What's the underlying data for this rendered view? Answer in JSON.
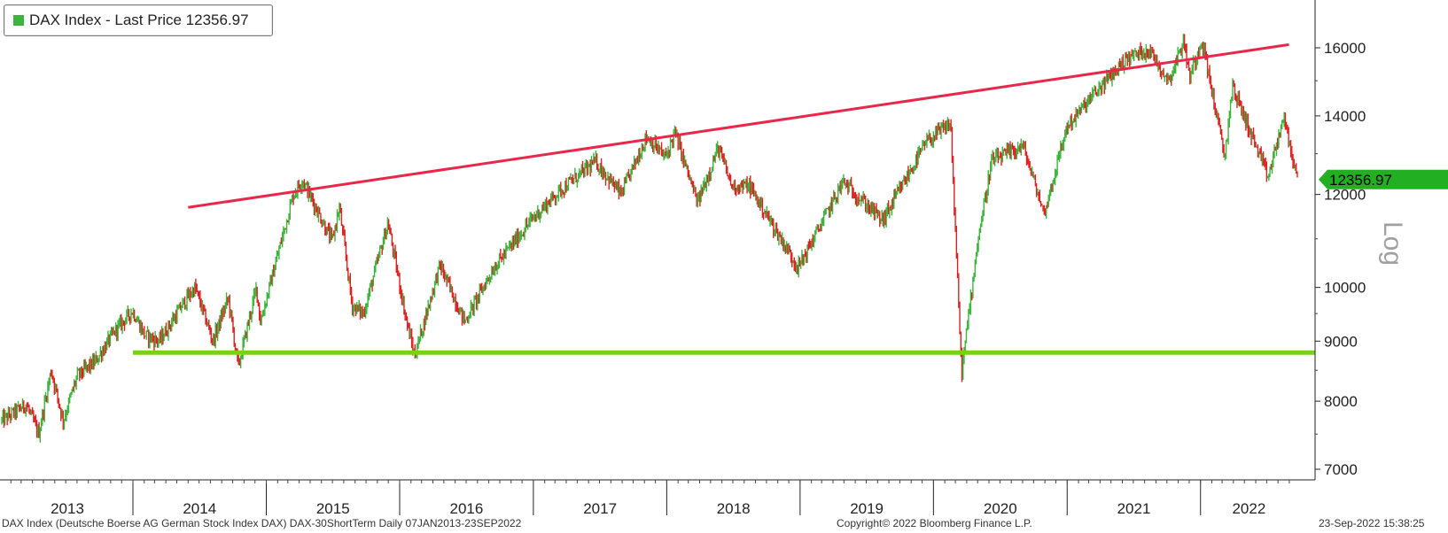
{
  "legend": {
    "label": "DAX Index - Last Price 12356.97",
    "color": "#3cb43c"
  },
  "footer": {
    "left": "DAX Index (Deutsche Boerse AG German Stock Index DAX) DAX-30ShortTerm  Daily 07JAN2013-23SEP2022",
    "center": "Copyright© 2022 Bloomberg Finance L.P.",
    "right": "23-Sep-2022 15:38:25"
  },
  "chart_data": {
    "type": "line",
    "title": "DAX Index - Last Price 12356.97",
    "yscale": "log",
    "ylabel": "Log",
    "ylim": [
      6800,
      17200
    ],
    "yticks": [
      7000,
      8000,
      9000,
      10000,
      12000,
      14000,
      16000
    ],
    "x_tick_labels": [
      "2013",
      "2014",
      "2015",
      "2016",
      "2017",
      "2018",
      "2019",
      "2020",
      "2021",
      "2022"
    ],
    "xlim": [
      "2013-01-07",
      "2022-09-23"
    ],
    "last_price": 12356.97,
    "colors": {
      "up": "#3cb43c",
      "down": "#e02020",
      "resistance": "#e8284a",
      "support": "#78d214",
      "last_tag": "#22b022"
    },
    "series": [
      {
        "values": [
          [
            "2013-01-07",
            7700
          ],
          [
            "2013-03-15",
            7950
          ],
          [
            "2013-04-18",
            7500
          ],
          [
            "2013-05-22",
            8500
          ],
          [
            "2013-06-24",
            7700
          ],
          [
            "2013-08-01",
            8400
          ],
          [
            "2013-09-20",
            8650
          ],
          [
            "2013-11-15",
            9200
          ],
          [
            "2013-12-31",
            9550
          ],
          [
            "2014-02-03",
            9100
          ],
          [
            "2014-03-14",
            9000
          ],
          [
            "2014-05-20",
            9700
          ],
          [
            "2014-06-20",
            10000
          ],
          [
            "2014-08-08",
            9000
          ],
          [
            "2014-09-19",
            9800
          ],
          [
            "2014-10-16",
            8550
          ],
          [
            "2014-12-05",
            10000
          ],
          [
            "2014-12-16",
            9350
          ],
          [
            "2015-01-20",
            10300
          ],
          [
            "2015-03-16",
            12000
          ],
          [
            "2015-04-10",
            12350
          ],
          [
            "2015-06-30",
            10950
          ],
          [
            "2015-07-20",
            11700
          ],
          [
            "2015-08-24",
            9650
          ],
          [
            "2015-09-24",
            9500
          ],
          [
            "2015-11-30",
            11350
          ],
          [
            "2016-01-20",
            9350
          ],
          [
            "2016-02-11",
            8750
          ],
          [
            "2016-04-20",
            10450
          ],
          [
            "2016-06-27",
            9350
          ],
          [
            "2016-09-15",
            10400
          ],
          [
            "2016-12-30",
            11450
          ],
          [
            "2017-03-16",
            12100
          ],
          [
            "2017-06-20",
            12800
          ],
          [
            "2017-08-29",
            12000
          ],
          [
            "2017-11-07",
            13450
          ],
          [
            "2017-12-29",
            12900
          ],
          [
            "2018-01-23",
            13550
          ],
          [
            "2018-03-26",
            11800
          ],
          [
            "2018-05-22",
            13150
          ],
          [
            "2018-06-28",
            12200
          ],
          [
            "2018-08-15",
            12200
          ],
          [
            "2018-10-25",
            11200
          ],
          [
            "2018-12-27",
            10400
          ],
          [
            "2019-04-29",
            12300
          ],
          [
            "2019-08-15",
            11400
          ],
          [
            "2019-12-13",
            13300
          ],
          [
            "2020-02-17",
            13790
          ],
          [
            "2020-03-18",
            8450
          ],
          [
            "2020-04-30",
            10900
          ],
          [
            "2020-06-08",
            12800
          ],
          [
            "2020-09-02",
            13200
          ],
          [
            "2020-10-30",
            11550
          ],
          [
            "2020-12-31",
            13700
          ],
          [
            "2021-03-15",
            14600
          ],
          [
            "2021-06-15",
            15700
          ],
          [
            "2021-08-12",
            15950
          ],
          [
            "2021-10-06",
            15000
          ],
          [
            "2021-11-17",
            16250
          ],
          [
            "2021-12-01",
            15100
          ],
          [
            "2022-01-05",
            16270
          ],
          [
            "2022-03-08",
            12900
          ],
          [
            "2022-03-29",
            14850
          ],
          [
            "2022-07-05",
            12400
          ],
          [
            "2022-08-16",
            13950
          ],
          [
            "2022-09-23",
            12356.97
          ]
        ]
      }
    ],
    "trendlines": [
      {
        "from": [
          "2014-06-01",
          11700
        ],
        "to": [
          "2022-08-31",
          16100
        ]
      },
      {
        "from": [
          "2014-01-01",
          8800
        ],
        "to": [
          "2022-09-23",
          8800
        ]
      }
    ]
  }
}
